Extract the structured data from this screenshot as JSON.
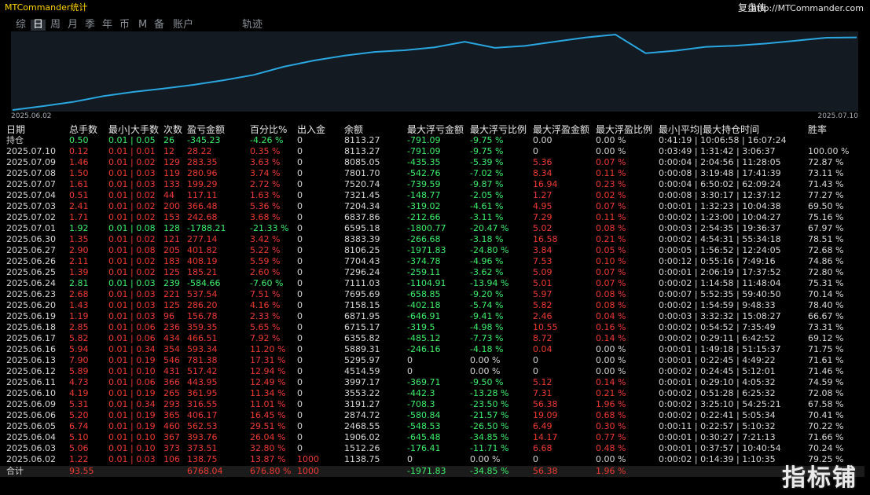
{
  "header": {
    "title": "MTCommander统计",
    "brand": "复盘侠",
    "url": "http://MTCommander.com"
  },
  "tabs": [
    "综",
    "日",
    "周",
    "月",
    "季",
    "年",
    "币",
    "M",
    "备",
    "账户",
    "轨迹"
  ],
  "active_tab": 1,
  "chart_data": {
    "type": "line",
    "color": "#2aa6e0",
    "x": [
      "2025.06.02",
      null,
      null,
      null,
      null,
      null,
      null,
      null,
      null,
      null,
      null,
      null,
      null,
      null,
      null,
      null,
      null,
      null,
      null,
      null,
      null,
      null,
      null,
      null,
      null,
      null,
      null,
      null,
      "2025.07.10"
    ],
    "values": [
      1138.75,
      1512.26,
      1906.02,
      2468.55,
      2874.72,
      3191.27,
      3553.22,
      3997.17,
      4514.59,
      5295.97,
      5889.31,
      6355.82,
      6715.17,
      6871.95,
      7158.15,
      7695.69,
      7111.03,
      7296.24,
      7704.43,
      8106.25,
      8383.39,
      6595.18,
      6837.86,
      7204.34,
      7321.45,
      7520.74,
      7801.7,
      8085.05,
      8113.27
    ]
  },
  "table": {
    "columns": [
      "日期",
      "总手数",
      "最小|大手数",
      "次数",
      "盈亏金额",
      "百分比%",
      "出入金",
      "余额",
      "最大浮亏金额",
      "最大浮亏比例",
      "最大浮盈金额",
      "最大浮盈比例",
      "最小|平均|最大持仓时间",
      "胜率"
    ],
    "rows": [
      [
        "持仓",
        "0.50",
        "0.01 | 0.05",
        "26",
        "-345.23",
        "-4.26 %",
        "0",
        "8113.27",
        "-791.09",
        "-9.75 %",
        "0.00",
        "0.00 %",
        "0:41:19 | 10:06:58 | 16:07:24",
        null
      ],
      [
        "2025.07.10",
        "0.12",
        "0.01 | 0.01",
        "12",
        "28.22",
        "0.35 %",
        "0",
        "8113.27",
        "-791.09",
        "-9.75 %",
        "0",
        "0.00 %",
        "0:03:49 | 1:31:42 | 3:06:37",
        "100.00 %"
      ],
      [
        "2025.07.09",
        "1.46",
        "0.01 | 0.02",
        "129",
        "283.35",
        "3.63 %",
        "0",
        "8085.05",
        "-435.35",
        "-5.39 %",
        "5.36",
        "0.07 %",
        "0:00:04 | 2:04:56 | 11:28:05",
        "72.87 %"
      ],
      [
        "2025.07.08",
        "1.50",
        "0.01 | 0.03",
        "119",
        "280.96",
        "3.74 %",
        "0",
        "7801.70",
        "-542.76",
        "-7.02 %",
        "8.34",
        "0.11 %",
        "0:00:08 | 3:19:48 | 17:41:39",
        "73.11 %"
      ],
      [
        "2025.07.07",
        "1.61",
        "0.01 | 0.03",
        "133",
        "199.29",
        "2.72 %",
        "0",
        "7520.74",
        "-739.59",
        "-9.87 %",
        "16.94",
        "0.23 %",
        "0:00:04 | 6:50:02 | 62:09:24",
        "71.43 %"
      ],
      [
        "2025.07.04",
        "0.51",
        "0.01 | 0.02",
        "44",
        "117.11",
        "1.63 %",
        "0",
        "7321.45",
        "-148.77",
        "-2.05 %",
        "1.27",
        "0.02 %",
        "0:00:08 | 3:30:17 | 12:37:12",
        "77.27 %"
      ],
      [
        "2025.07.03",
        "2.41",
        "0.01 | 0.02",
        "200",
        "366.48",
        "5.36 %",
        "0",
        "7204.34",
        "-319.02",
        "-4.61 %",
        "4.95",
        "0.07 %",
        "0:00:01 | 1:32:23 | 10:04:38",
        "69.50 %"
      ],
      [
        "2025.07.02",
        "1.71",
        "0.01 | 0.02",
        "153",
        "242.68",
        "3.68 %",
        "0",
        "6837.86",
        "-212.66",
        "-3.11 %",
        "7.29",
        "0.11 %",
        "0:00:02 | 1:23:00 | 10:04:27",
        "75.16 %"
      ],
      [
        "2025.07.01",
        "1.92",
        "0.01 | 0.08",
        "128",
        "-1788.21",
        "-21.33 %",
        "0",
        "6595.18",
        "-1800.77",
        "-20.47 %",
        "5.02",
        "0.08 %",
        "0:00:03 | 2:54:35 | 19:36:37",
        "67.97 %"
      ],
      [
        "2025.06.30",
        "1.35",
        "0.01 | 0.02",
        "121",
        "277.14",
        "3.42 %",
        "0",
        "8383.39",
        "-266.68",
        "-3.18 %",
        "16.58",
        "0.21 %",
        "0:00:02 | 4:54:31 | 55:34:18",
        "78.51 %"
      ],
      [
        "2025.06.27",
        "2.90",
        "0.01 | 0.08",
        "205",
        "401.82",
        "5.22 %",
        "0",
        "8106.25",
        "-1971.83",
        "-24.80 %",
        "3.84",
        "0.05 %",
        "0:00:05 | 1:56:52 | 12:24:05",
        "72.68 %"
      ],
      [
        "2025.06.26",
        "2.11",
        "0.01 | 0.02",
        "183",
        "408.19",
        "5.59 %",
        "0",
        "7704.43",
        "-374.78",
        "-4.96 %",
        "7.53",
        "0.10 %",
        "0:00:12 | 0:55:16 | 7:49:16",
        "74.86 %"
      ],
      [
        "2025.06.25",
        "1.39",
        "0.01 | 0.02",
        "125",
        "185.21",
        "2.60 %",
        "0",
        "7296.24",
        "-259.11",
        "-3.62 %",
        "5.09",
        "0.07 %",
        "0:00:01 | 2:06:19 | 17:37:52",
        "72.80 %"
      ],
      [
        "2025.06.24",
        "2.81",
        "0.01 | 0.03",
        "239",
        "-584.66",
        "-7.60 %",
        "0",
        "7111.03",
        "-1104.91",
        "-13.94 %",
        "5.01",
        "0.07 %",
        "0:00:02 | 1:14:58 | 11:48:04",
        "75.31 %"
      ],
      [
        "2025.06.23",
        "2.68",
        "0.01 | 0.03",
        "221",
        "537.54",
        "7.51 %",
        "0",
        "7695.69",
        "-658.85",
        "-9.20 %",
        "5.97",
        "0.08 %",
        "0:00:07 | 5:52:35 | 59:40:50",
        "70.14 %"
      ],
      [
        "2025.06.20",
        "1.43",
        "0.01 | 0.03",
        "125",
        "286.20",
        "4.16 %",
        "0",
        "7158.15",
        "-402.18",
        "-5.74 %",
        "5.82",
        "0.08 %",
        "0:00:02 | 1:54:59 | 9:48:33",
        "78.40 %"
      ],
      [
        "2025.06.19",
        "1.19",
        "0.01 | 0.03",
        "96",
        "156.78",
        "2.33 %",
        "0",
        "6871.95",
        "-646.91",
        "-9.41 %",
        "2.46",
        "0.04 %",
        "0:00:03 | 3:32:32 | 15:08:27",
        "66.67 %"
      ],
      [
        "2025.06.18",
        "2.85",
        "0.01 | 0.06",
        "236",
        "359.35",
        "5.65 %",
        "0",
        "6715.17",
        "-319.5",
        "-4.98 %",
        "10.55",
        "0.16 %",
        "0:00:02 | 0:54:52 | 7:35:49",
        "73.31 %"
      ],
      [
        "2025.06.17",
        "5.82",
        "0.01 | 0.06",
        "434",
        "466.51",
        "7.92 %",
        "0",
        "6355.82",
        "-485.12",
        "-7.73 %",
        "8.72",
        "0.14 %",
        "0:00:02 | 0:29:11 | 6:42:52",
        "69.12 %"
      ],
      [
        "2025.06.16",
        "5.94",
        "0.01 | 0.34",
        "354",
        "593.34",
        "11.20 %",
        "0",
        "5889.31",
        "-246.16",
        "-4.18 %",
        "0.04",
        "0.00 %",
        "0:00:01 | 1:49:18 | 51:15:37",
        "71.75 %"
      ],
      [
        "2025.06.13",
        "7.90",
        "0.01 | 0.19",
        "546",
        "781.38",
        "17.31 %",
        "0",
        "5295.97",
        "0",
        "0.00 %",
        "0",
        "0.00 %",
        "0:00:01 | 0:22:45 | 4:49:22",
        "71.61 %"
      ],
      [
        "2025.06.12",
        "5.89",
        "0.01 | 0.10",
        "431",
        "517.42",
        "12.94 %",
        "0",
        "4514.59",
        "0",
        "0.00 %",
        "0",
        "0.00 %",
        "0:00:02 | 0:24:45 | 5:12:01",
        "71.46 %"
      ],
      [
        "2025.06.11",
        "4.73",
        "0.01 | 0.06",
        "366",
        "443.95",
        "12.49 %",
        "0",
        "3997.17",
        "-369.71",
        "-9.50 %",
        "5.12",
        "0.14 %",
        "0:00:01 | 0:29:10 | 4:05:32",
        "74.59 %"
      ],
      [
        "2025.06.10",
        "4.19",
        "0.01 | 0.19",
        "265",
        "361.95",
        "11.34 %",
        "0",
        "3553.22",
        "-442.3",
        "-13.28 %",
        "7.31",
        "0.21 %",
        "0:00:02 | 0:51:28 | 6:25:32",
        "72.08 %"
      ],
      [
        "2025.06.09",
        "5.31",
        "0.01 | 0.34",
        "293",
        "316.55",
        "11.01 %",
        "0",
        "3191.27",
        "-708.3",
        "-23.50 %",
        "56.38",
        "1.96 %",
        "0:00:02 | 3:25:10 | 54:25:21",
        "67.58 %"
      ],
      [
        "2025.06.06",
        "5.20",
        "0.01 | 0.19",
        "365",
        "406.17",
        "16.45 %",
        "0",
        "2874.72",
        "-580.84",
        "-21.57 %",
        "19.09",
        "0.68 %",
        "0:00:02 | 0:22:41 | 5:05:34",
        "70.41 %"
      ],
      [
        "2025.06.05",
        "6.74",
        "0.01 | 0.19",
        "460",
        "562.53",
        "29.51 %",
        "0",
        "2468.55",
        "-548.53",
        "-26.50 %",
        "6.49",
        "0.30 %",
        "0:00:11 | 0:22:57 | 5:10:32",
        "70.22 %"
      ],
      [
        "2025.06.04",
        "5.10",
        "0.01 | 0.10",
        "367",
        "393.76",
        "26.04 %",
        "0",
        "1906.02",
        "-645.48",
        "-34.85 %",
        "14.17",
        "0.77 %",
        "0:00:01 | 0:30:27 | 7:21:13",
        "71.66 %"
      ],
      [
        "2025.06.03",
        "5.06",
        "0.01 | 0.10",
        "373",
        "373.51",
        "32.80 %",
        "0",
        "1512.26",
        "-176.41",
        "-11.71 %",
        "6.68",
        "0.48 %",
        "0:00:01 | 0:37:57 | 10:40:54",
        "70.24 %"
      ],
      [
        "2025.06.02",
        "1.22",
        "0.01 | 0.03",
        "106",
        "138.75",
        "13.87 %",
        "1000",
        "1138.75",
        "0",
        "0.00 %",
        "0",
        "0.00 %",
        "0:00:02 | 0:14:39 | 1:10:35",
        "79.25 %"
      ]
    ],
    "total": [
      "合计",
      "93.55",
      null,
      null,
      "6768.04",
      "676.80 %",
      "1000",
      null,
      "-1971.83",
      "-34.85 %",
      "56.38",
      "1.96 %",
      null,
      null
    ]
  },
  "watermark": "指标铺"
}
